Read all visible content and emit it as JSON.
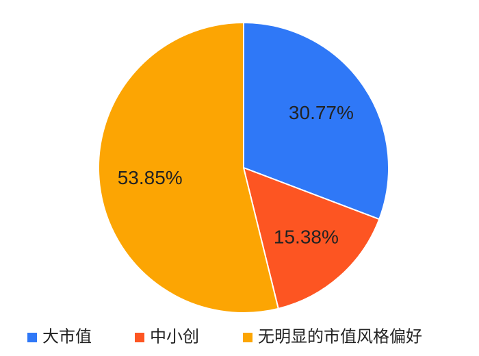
{
  "chart_data": {
    "type": "pie",
    "categories": [
      "大市值",
      "中小创",
      "无明显的市值风格偏好"
    ],
    "values": [
      30.77,
      15.38,
      53.85
    ],
    "value_labels": [
      "30.77%",
      "15.38%",
      "53.85%"
    ],
    "colors": [
      "#2f78f7",
      "#fd5522",
      "#fca503"
    ],
    "legend": "bottom"
  }
}
